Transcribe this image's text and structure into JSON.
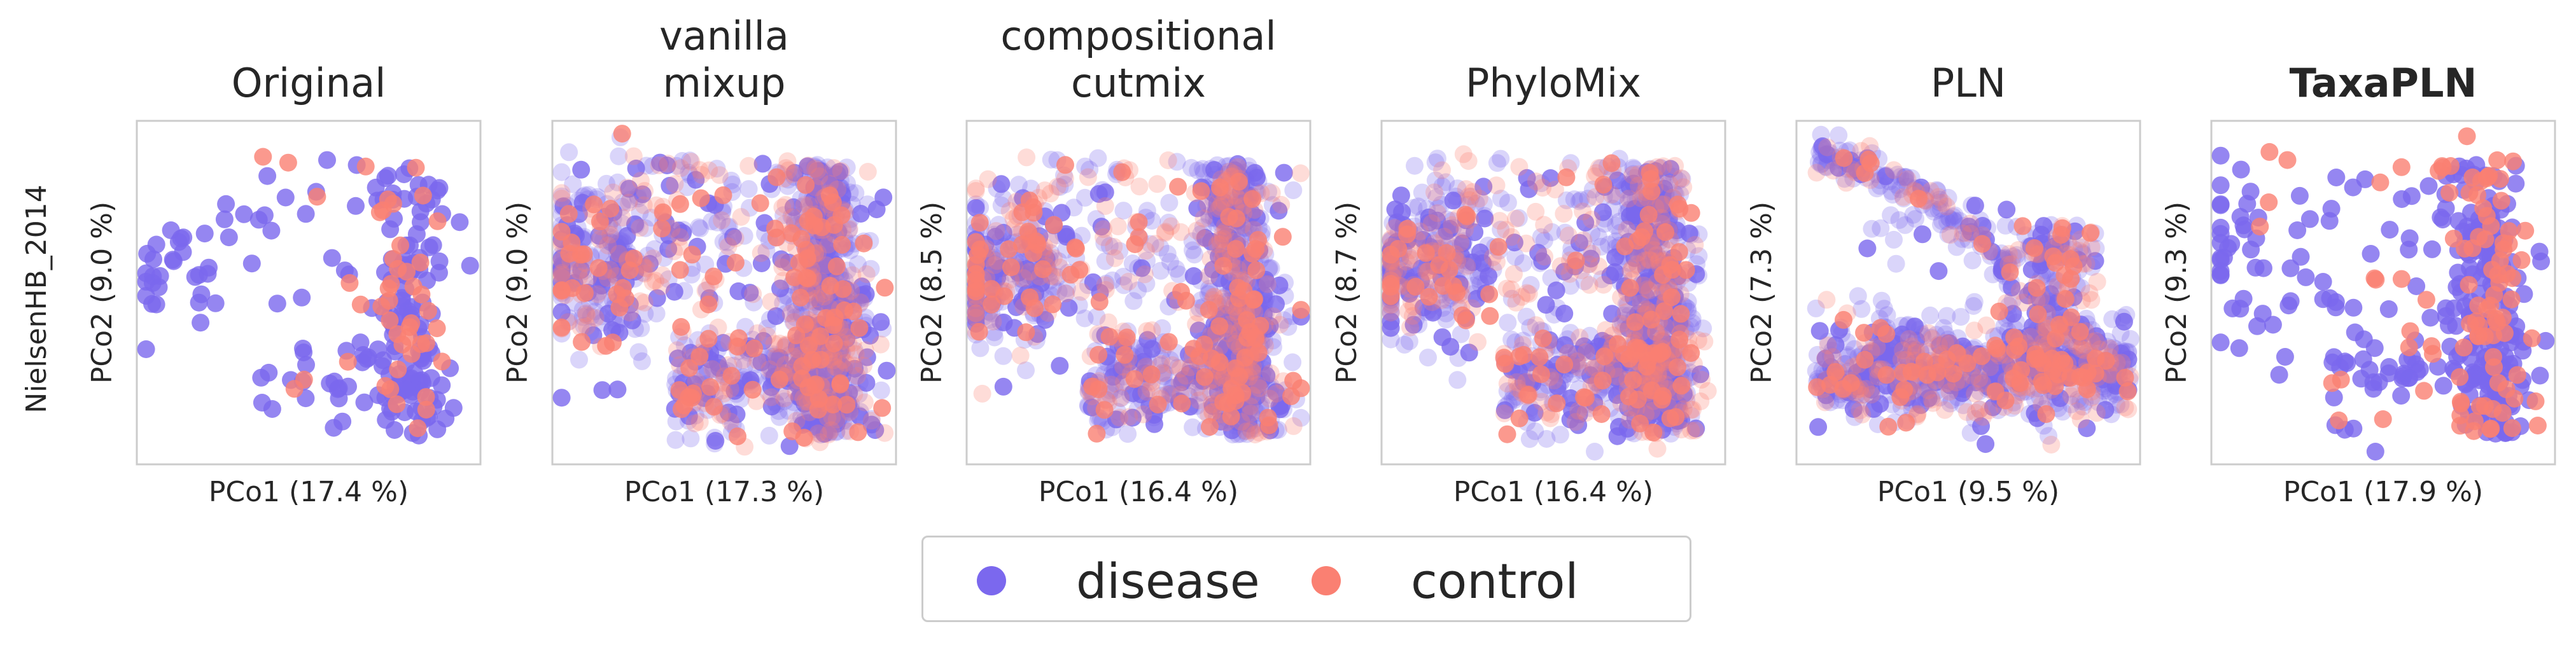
{
  "colors": {
    "disease": "#7b68ee",
    "control": "#fa8072"
  },
  "row_label": "NielsenHB_2014",
  "legend": [
    {
      "name": "disease",
      "color": "#7b68ee"
    },
    {
      "name": "control",
      "color": "#fa8072"
    }
  ],
  "chart_data": [
    {
      "type": "scatter",
      "title": [
        "Original"
      ],
      "bold": false,
      "xlabel": "PCo1 (17.4 %)",
      "ylabel": "PCo2 (9.0 %)",
      "style": "sparse",
      "series": [
        "disease",
        "control"
      ]
    },
    {
      "type": "scatter",
      "title": [
        "vanilla",
        "mixup"
      ],
      "bold": false,
      "xlabel": "PCo1 (17.3 %)",
      "ylabel": "PCo2 (9.0 %)",
      "style": "dense",
      "series": [
        "disease",
        "control"
      ]
    },
    {
      "type": "scatter",
      "title": [
        "compositional",
        "cutmix"
      ],
      "bold": false,
      "xlabel": "PCo1 (16.4 %)",
      "ylabel": "PCo2 (8.5 %)",
      "style": "dense",
      "series": [
        "disease",
        "control"
      ]
    },
    {
      "type": "scatter",
      "title": [
        "PhyloMix"
      ],
      "bold": false,
      "xlabel": "PCo1 (16.4 %)",
      "ylabel": "PCo2 (8.7 %)",
      "style": "dense",
      "series": [
        "disease",
        "control"
      ]
    },
    {
      "type": "scatter",
      "title": [
        "PLN"
      ],
      "bold": false,
      "xlabel": "PCo1 (9.5 %)",
      "ylabel": "PCo2 (7.3 %)",
      "style": "band",
      "series": [
        "disease",
        "control"
      ]
    },
    {
      "type": "scatter",
      "title": [
        "TaxaPLN"
      ],
      "bold": true,
      "xlabel": "PCo1 (17.9 %)",
      "ylabel": "PCo2 (9.3 %)",
      "style": "medium",
      "series": [
        "disease",
        "control"
      ]
    }
  ]
}
